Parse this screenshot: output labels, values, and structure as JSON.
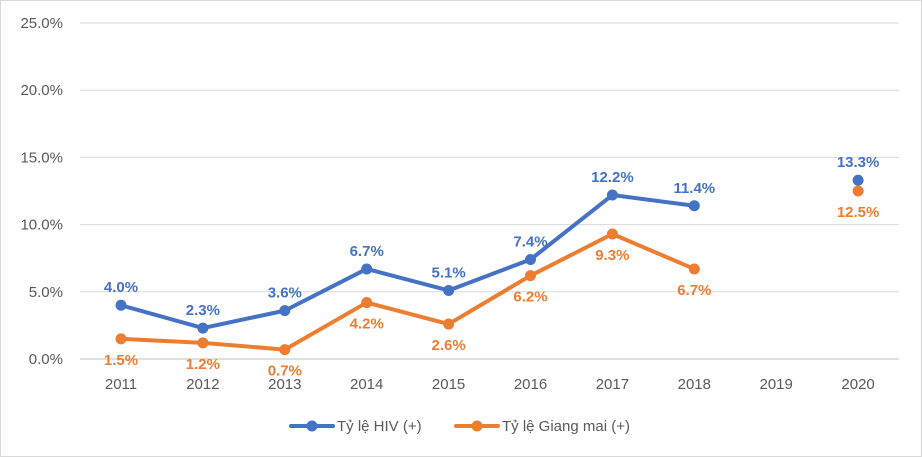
{
  "chart_data": {
    "type": "line",
    "title": "",
    "xlabel": "",
    "ylabel": "",
    "categories": [
      "2011",
      "2012",
      "2013",
      "2014",
      "2015",
      "2016",
      "2017",
      "2018",
      "2019",
      "2020"
    ],
    "ylim": [
      0,
      25
    ],
    "yticks": [
      "0.0%",
      "5.0%",
      "10.0%",
      "15.0%",
      "20.0%",
      "25.0%"
    ],
    "grid": true,
    "legend_position": "bottom",
    "series": [
      {
        "name": "Tỷ lệ HIV (+)",
        "color": "#4472C4",
        "label_side": "above",
        "values": [
          4.0,
          2.3,
          3.6,
          6.7,
          5.1,
          7.4,
          12.2,
          11.4,
          null,
          13.3
        ],
        "labels": [
          "4.0%",
          "2.3%",
          "3.6%",
          "6.7%",
          "5.1%",
          "7.4%",
          "12.2%",
          "11.4%",
          null,
          "13.3%"
        ]
      },
      {
        "name": "Tỷ lệ Giang mai (+)",
        "color": "#ED7D31",
        "label_side": "below",
        "values": [
          1.5,
          1.2,
          0.7,
          4.2,
          2.6,
          6.2,
          9.3,
          6.7,
          null,
          12.5
        ],
        "labels": [
          "1.5%",
          "1.2%",
          "0.7%",
          "4.2%",
          "2.6%",
          "6.2%",
          "9.3%",
          "6.7%",
          null,
          "12.5%"
        ]
      }
    ]
  }
}
